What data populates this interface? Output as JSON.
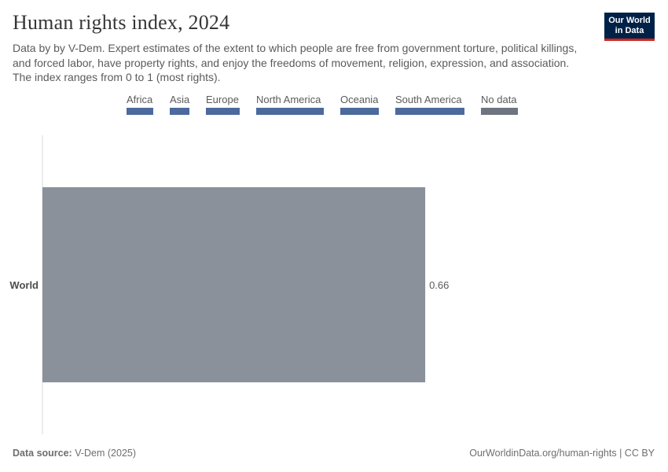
{
  "header": {
    "title": "Human rights index, 2024",
    "subtitle": "Data by by V-Dem. Expert estimates of the extent to which people are free from government torture, political killings, and forced labor, have property rights, and enjoy the freedoms of movement, religion, expression, and association. The index ranges from 0 to 1 (most rights)."
  },
  "logo": {
    "line1": "Our World",
    "line2": "in Data"
  },
  "legend": [
    {
      "label": "Africa",
      "color": "#4c6a9c"
    },
    {
      "label": "Asia",
      "color": "#4c6a9c"
    },
    {
      "label": "Europe",
      "color": "#4c6a9c"
    },
    {
      "label": "North America",
      "color": "#4c6a9c"
    },
    {
      "label": "Oceania",
      "color": "#4c6a9c"
    },
    {
      "label": "South America",
      "color": "#4c6a9c"
    },
    {
      "label": "No data",
      "color": "#6e7581"
    }
  ],
  "chart_data": {
    "type": "bar",
    "orientation": "horizontal",
    "categories": [
      "World"
    ],
    "values": [
      0.66
    ],
    "value_labels": [
      "0.66"
    ],
    "bar_colors": [
      "#8b919a"
    ],
    "xlim": [
      0,
      1
    ],
    "grid": false,
    "legend_position": "top"
  },
  "footer": {
    "source_label": "Data source:",
    "source": "V-Dem (2025)",
    "url": "OurWorldinData.org/human-rights",
    "license": "CC BY"
  }
}
